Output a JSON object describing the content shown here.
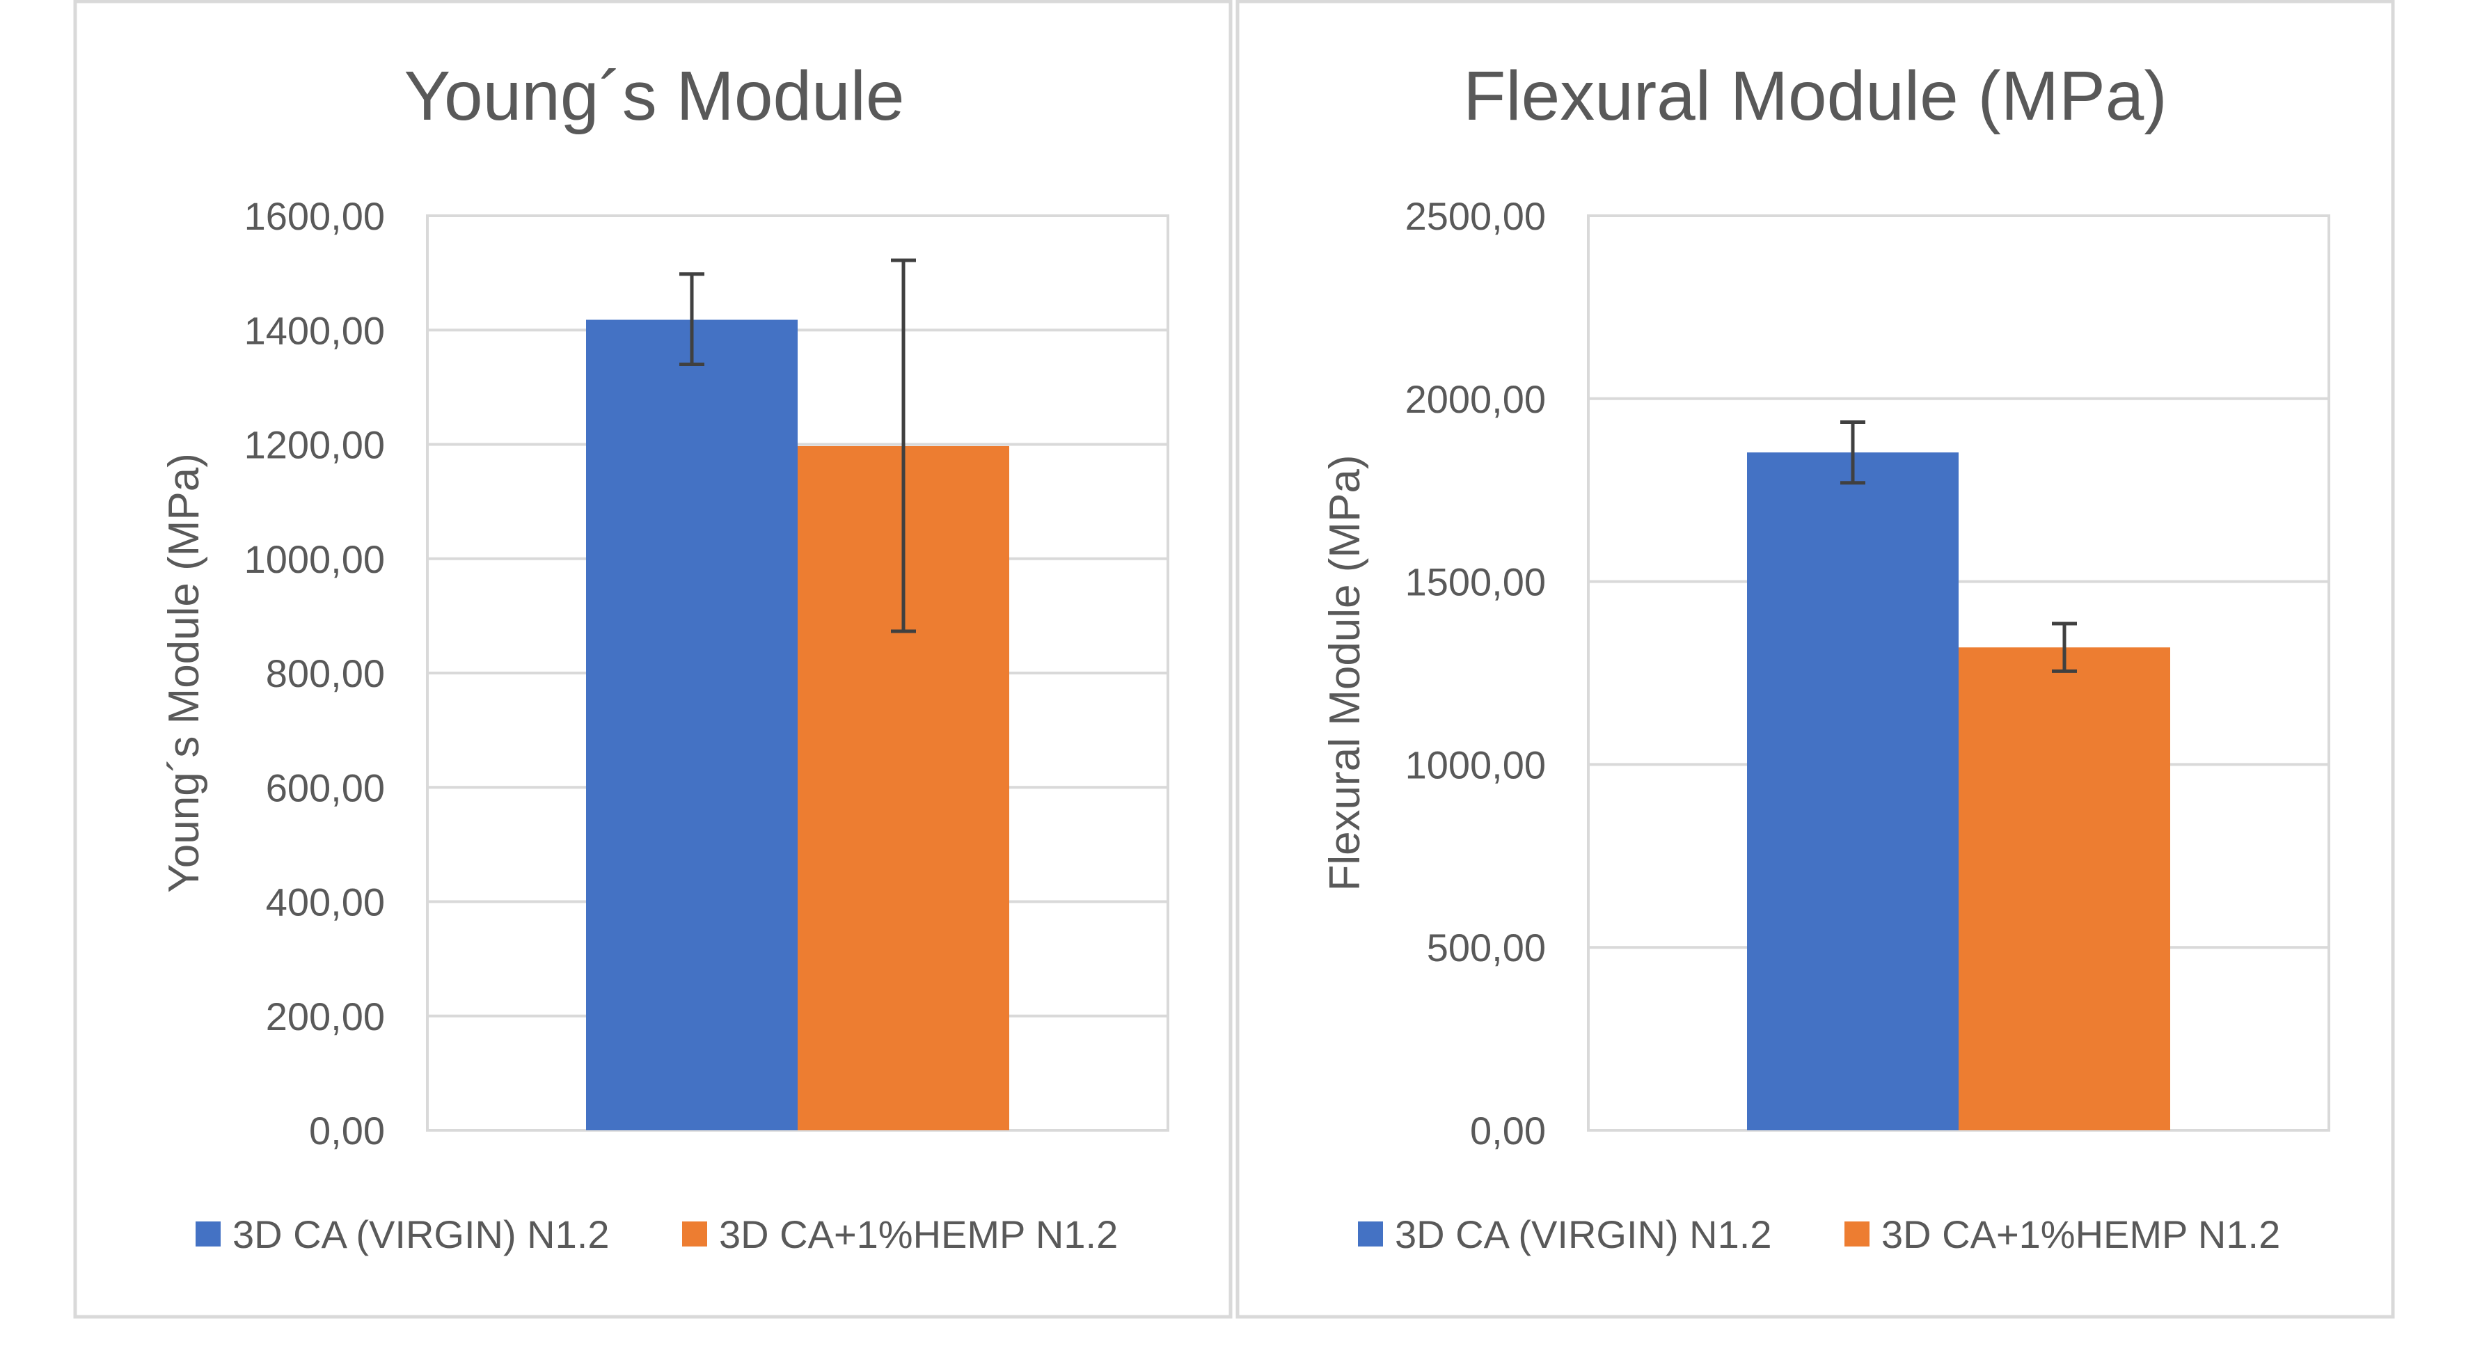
{
  "chart_data": [
    {
      "type": "bar",
      "title": "Young´s Module",
      "ylabel": "Young´s Module (MPa)",
      "xlabel": "",
      "ylim": [
        0,
        1600
      ],
      "yticks": [
        "0,00",
        "200,00",
        "400,00",
        "600,00",
        "800,00",
        "1000,00",
        "1200,00",
        "1400,00",
        "1600,00"
      ],
      "grid": true,
      "legend_position": "bottom",
      "series": [
        {
          "name": "3D CA (VIRGIN) N1.2",
          "color": "#4472c4",
          "value": 1418,
          "err_low": 1340,
          "err_high": 1498
        },
        {
          "name": "3D CA+1%HEMP N1.2",
          "color": "#ed7d31",
          "value": 1197,
          "err_low": 873,
          "err_high": 1522
        }
      ]
    },
    {
      "type": "bar",
      "title": "Flexural Module (MPa)",
      "ylabel": "Flexural Module (MPa)",
      "xlabel": "",
      "ylim": [
        0,
        2500
      ],
      "yticks": [
        "0,00",
        "500,00",
        "1000,00",
        "1500,00",
        "2000,00",
        "2500,00"
      ],
      "grid": true,
      "legend_position": "bottom",
      "series": [
        {
          "name": "3D CA (VIRGIN) N1.2",
          "color": "#4472c4",
          "value": 1853,
          "err_low": 1770,
          "err_high": 1936
        },
        {
          "name": "3D CA+1%HEMP N1.2",
          "color": "#ed7d31",
          "value": 1320,
          "err_low": 1255,
          "err_high": 1385
        }
      ]
    }
  ]
}
